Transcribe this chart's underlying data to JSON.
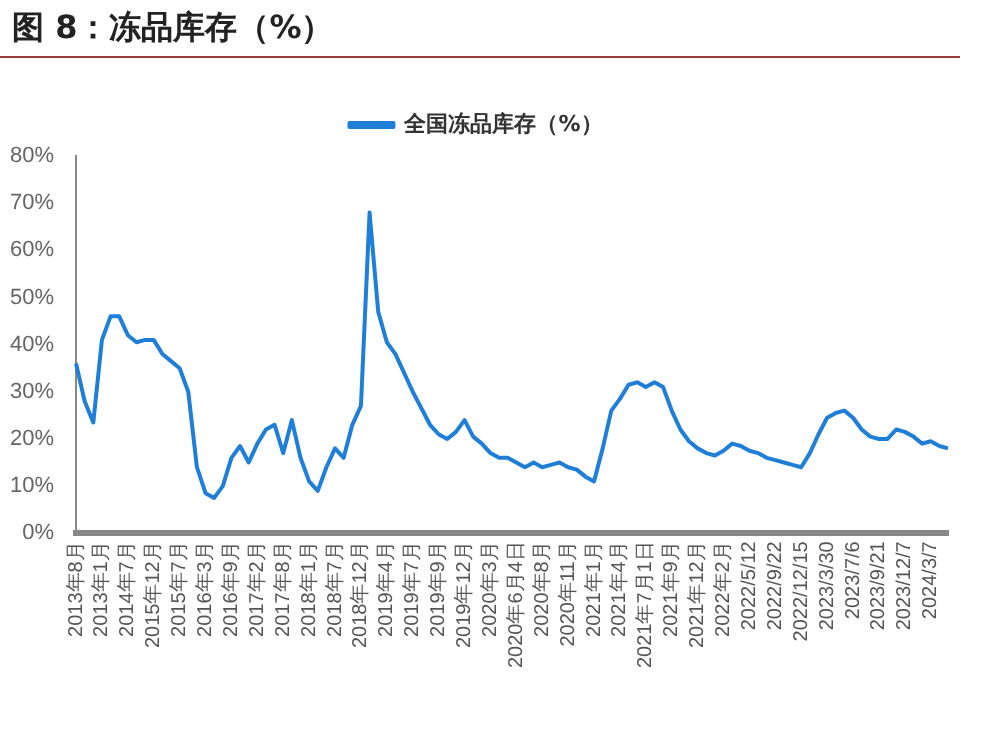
{
  "chart_data": {
    "type": "line",
    "title": "图 8：冻品库存（%）",
    "categories": [
      "2013年8月",
      null,
      null,
      "2013年1月",
      null,
      null,
      "2014年7月",
      null,
      null,
      "2015年12月",
      null,
      null,
      "2015年7月",
      null,
      null,
      "2016年3月",
      null,
      null,
      "2016年9月",
      null,
      null,
      "2017年2月",
      null,
      null,
      "2017年8月",
      null,
      null,
      "2018年1月",
      null,
      null,
      "2018年7月",
      null,
      null,
      "2018年12月",
      null,
      null,
      "2019年4月",
      null,
      null,
      "2019年7月",
      null,
      null,
      "2019年9月",
      null,
      null,
      "2019年12月",
      null,
      null,
      "2020年3月",
      null,
      null,
      "2020年6月4日",
      null,
      null,
      "2020年8月",
      null,
      null,
      "2020年11月",
      null,
      null,
      "2021年1月",
      null,
      null,
      "2021年4月",
      null,
      null,
      "2021年7月1日",
      null,
      null,
      "2021年9月",
      null,
      null,
      "2021年12月",
      null,
      null,
      "2022年2月",
      null,
      null,
      "2022/5/12",
      null,
      null,
      "2022/9/22",
      null,
      null,
      "2022/12/15",
      null,
      null,
      "2023/3/30",
      null,
      null,
      "2023/7/6",
      null,
      null,
      "2023/9/21",
      null,
      null,
      "2023/12/7",
      null,
      null,
      "2024/3/7",
      null,
      null
    ],
    "series": [
      {
        "name": "全国冻品库存（%）",
        "color": "#1f7fd8",
        "values": [
          36,
          28,
          23.5,
          41,
          46,
          46,
          42,
          40.5,
          41,
          41,
          38,
          36.5,
          35,
          30,
          14,
          8.5,
          7.5,
          10,
          16,
          18.5,
          15,
          19,
          22,
          23,
          17,
          24,
          16,
          11,
          9,
          14,
          18,
          16,
          23,
          27,
          68,
          47,
          40.5,
          38,
          34,
          30,
          26.5,
          23,
          21,
          20,
          21.5,
          24,
          20.5,
          19,
          17,
          16,
          16,
          15,
          14,
          15,
          14,
          14.5,
          15,
          14,
          13.5,
          12,
          11,
          18,
          26,
          28.5,
          31.5,
          32,
          31,
          32,
          31,
          26,
          22,
          19.5,
          18,
          17,
          16.5,
          17.5,
          19,
          18.5,
          17.5,
          17,
          16,
          15.5,
          15,
          14.5,
          14,
          17,
          21,
          24.5,
          25.5,
          26,
          24.5,
          22,
          20.5,
          20,
          20,
          22,
          21.5,
          20.5,
          19,
          19.5,
          18.5,
          18
        ]
      }
    ],
    "ylim": [
      0,
      80
    ],
    "yticks": [
      {
        "value": 0,
        "label": "0%"
      },
      {
        "value": 10,
        "label": "10%"
      },
      {
        "value": 20,
        "label": "20%"
      },
      {
        "value": 30,
        "label": "30%"
      },
      {
        "value": 40,
        "label": "40%"
      },
      {
        "value": 50,
        "label": "50%"
      },
      {
        "value": 60,
        "label": "60%"
      },
      {
        "value": 70,
        "label": "70%"
      },
      {
        "value": 80,
        "label": "80%"
      }
    ],
    "grid": false,
    "legend": "top",
    "marker": "none",
    "line_style": "solid"
  }
}
